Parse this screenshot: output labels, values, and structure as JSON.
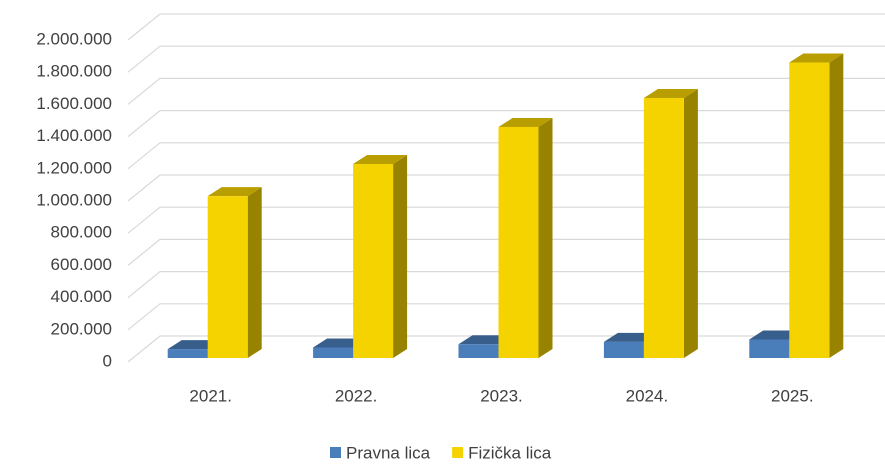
{
  "chart_data": {
    "type": "bar3d",
    "categories": [
      "2021.",
      "2022.",
      "2023.",
      "2024.",
      "2025."
    ],
    "series": [
      {
        "name": "Pravna lica",
        "color": "#4a7ebb",
        "values": [
          80000,
          90000,
          110000,
          125000,
          140000
        ]
      },
      {
        "name": "Fizička lica",
        "color": "#f5d300",
        "values": [
          1030000,
          1230000,
          1460000,
          1640000,
          1860000
        ]
      }
    ],
    "ylim": [
      0,
      2000000
    ],
    "yticks": [
      0,
      {
        "value": 200000,
        "label": "200.000"
      },
      {
        "value": 400000,
        "label": "400.000"
      },
      {
        "value": 600000,
        "label": "600.000"
      },
      {
        "value": 800000,
        "label": "800.000"
      },
      {
        "value": 1000000,
        "label": "1.000.000"
      },
      {
        "value": 1200000,
        "label": "1.200.000"
      },
      {
        "value": 1400000,
        "label": "1.400.000"
      },
      {
        "value": 1600000,
        "label": "1.600.000"
      },
      {
        "value": 1800000,
        "label": "1.800.000"
      },
      {
        "value": 2000000,
        "label": "2.000.000"
      }
    ],
    "grid": true,
    "legend": "bottom"
  }
}
